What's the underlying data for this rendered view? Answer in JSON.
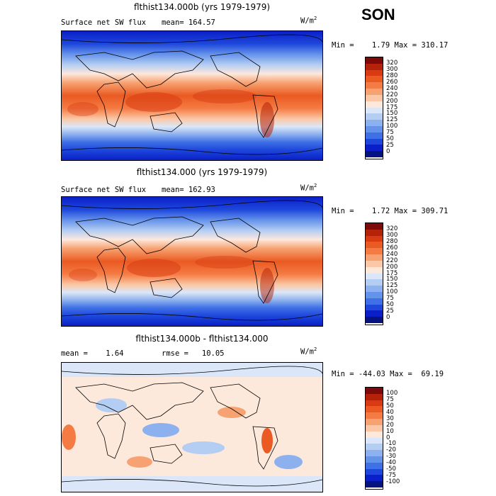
{
  "season": "SON",
  "units_prefix": "W/m",
  "units_exp": "2",
  "panels": [
    {
      "title": "flthist134.000b (yrs 1979-1979)",
      "left_label": "Surface net SW flux",
      "mean_label": "mean= 164.57",
      "minmax": "Min =    1.79 Max = 310.17",
      "colorbar": {
        "labels": [
          "320",
          "300",
          "280",
          "260",
          "240",
          "220",
          "200",
          "175",
          "150",
          "125",
          "100",
          "75",
          "50",
          "25",
          "0"
        ],
        "colors": [
          "#7d0a0a",
          "#b4220a",
          "#d83a12",
          "#ea5a22",
          "#f47c44",
          "#f7a272",
          "#fbc7a6",
          "#fde8dc",
          "#dbe7f8",
          "#b3cdf3",
          "#8db1ee",
          "#6693ea",
          "#3f70e6",
          "#1e48dc",
          "#0a1fc8",
          "#06127f"
        ]
      }
    },
    {
      "title": "flthist134.000 (yrs 1979-1979)",
      "left_label": "Surface net SW flux",
      "mean_label": "mean= 162.93",
      "minmax": "Min =    1.72 Max = 309.71",
      "colorbar": {
        "labels": [
          "320",
          "300",
          "280",
          "260",
          "240",
          "220",
          "200",
          "175",
          "150",
          "125",
          "100",
          "75",
          "50",
          "25",
          "0"
        ],
        "colors": [
          "#7d0a0a",
          "#b4220a",
          "#d83a12",
          "#ea5a22",
          "#f47c44",
          "#f7a272",
          "#fbc7a6",
          "#fde8dc",
          "#dbe7f8",
          "#b3cdf3",
          "#8db1ee",
          "#6693ea",
          "#3f70e6",
          "#1e48dc",
          "#0a1fc8",
          "#06127f"
        ]
      }
    },
    {
      "title": "flthist134.000b - flthist134.000",
      "left_label": "mean =    1.64",
      "mean_label": "rmse =   10.05",
      "minmax": "Min = -44.03 Max =  69.19",
      "colorbar": {
        "labels": [
          "100",
          "75",
          "50",
          "40",
          "30",
          "20",
          "10",
          "0",
          "-10",
          "-20",
          "-30",
          "-40",
          "-50",
          "-75",
          "-100"
        ],
        "colors": [
          "#7d0a0a",
          "#b4220a",
          "#d83a12",
          "#ea5a22",
          "#f47c44",
          "#f7a272",
          "#fbc7a6",
          "#fde8dc",
          "#dbe7f8",
          "#b3cdf3",
          "#8db1ee",
          "#6693ea",
          "#3f70e6",
          "#1e48dc",
          "#0a1fc8",
          "#06127f"
        ]
      }
    }
  ]
}
